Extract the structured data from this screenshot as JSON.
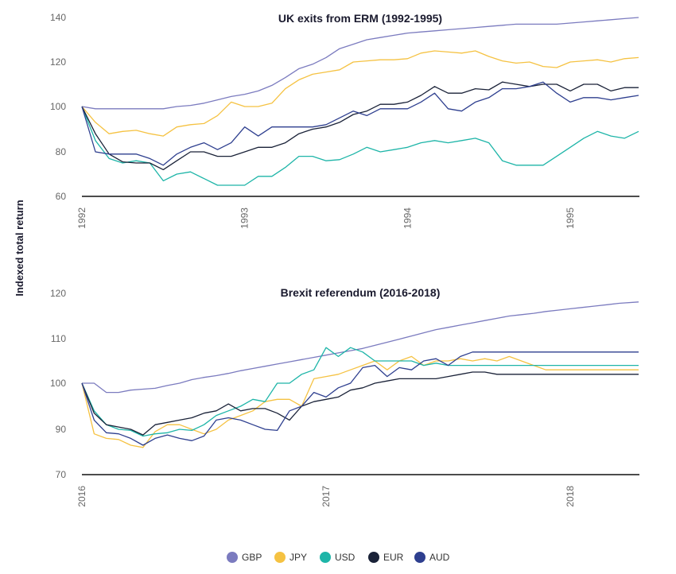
{
  "ylabel": "Indexed total return",
  "legend": [
    {
      "name": "GBP",
      "color": "#7b7bbf"
    },
    {
      "name": "JPY",
      "color": "#f5c242"
    },
    {
      "name": "USD",
      "color": "#1eb5a8"
    },
    {
      "name": "EUR",
      "color": "#1a2238"
    },
    {
      "name": "AUD",
      "color": "#2e3f8f"
    }
  ],
  "chart_data": [
    {
      "type": "line",
      "title": "UK exits from ERM (1992-1995)",
      "ylabel": "Indexed total return",
      "ylim": [
        60,
        140
      ],
      "yticks": [
        60,
        80,
        100,
        120,
        140
      ],
      "xlim": [
        1992,
        1995.42
      ],
      "xticks": [
        {
          "value": 1992,
          "label": "1992"
        },
        {
          "value": 1993,
          "label": "1993"
        },
        {
          "value": 1994,
          "label": "1994"
        },
        {
          "value": 1995,
          "label": "1995"
        }
      ],
      "x": [
        1992,
        1992.083,
        1992.167,
        1992.25,
        1992.333,
        1992.417,
        1992.5,
        1992.583,
        1992.667,
        1992.75,
        1992.833,
        1992.917,
        1993,
        1993.083,
        1993.167,
        1993.25,
        1993.333,
        1993.417,
        1993.5,
        1993.583,
        1993.667,
        1993.75,
        1993.833,
        1993.917,
        1994,
        1994.083,
        1994.167,
        1994.25,
        1994.333,
        1994.417,
        1994.5,
        1994.583,
        1994.667,
        1994.75,
        1994.833,
        1994.917,
        1995,
        1995.083,
        1995.167,
        1995.25,
        1995.333,
        1995.42
      ],
      "series": [
        {
          "name": "GBP",
          "color": "#7b7bbf",
          "values": [
            100,
            99,
            99,
            99,
            99,
            99,
            99,
            100,
            100.5,
            101.5,
            103,
            104.5,
            105.5,
            107,
            109.5,
            113,
            117,
            119,
            122,
            126,
            128,
            130,
            131,
            132,
            133,
            133.5,
            134,
            134.5,
            135,
            135.5,
            136,
            136.5,
            137,
            137,
            137,
            137,
            137.5,
            138,
            138.5,
            139,
            139.5,
            140
          ]
        },
        {
          "name": "JPY",
          "color": "#f5c242",
          "values": [
            100,
            93,
            88,
            89,
            89.5,
            88,
            87,
            91,
            92,
            92.5,
            96,
            102,
            100,
            100,
            101.5,
            108,
            112,
            114.5,
            115.5,
            116.5,
            120,
            120.5,
            121,
            121,
            121.5,
            124,
            125,
            124.5,
            124,
            125,
            122.5,
            120.5,
            119.5,
            120,
            118,
            117.5,
            120,
            120.5,
            121,
            120,
            121.5,
            122
          ]
        },
        {
          "name": "USD",
          "color": "#1eb5a8",
          "values": [
            100,
            85,
            77,
            75,
            76,
            75,
            67,
            70,
            71,
            68,
            65,
            65,
            65,
            69,
            69,
            73,
            78,
            78,
            76,
            76.5,
            79,
            82,
            80,
            81,
            82,
            84,
            85,
            84,
            85,
            86,
            84,
            76,
            74,
            74,
            74,
            78,
            82,
            86,
            89,
            87,
            86,
            89
          ]
        },
        {
          "name": "EUR",
          "color": "#1a2238",
          "values": [
            100,
            88,
            79,
            75.5,
            75,
            75,
            72,
            76,
            80,
            80,
            78,
            78,
            80,
            82,
            82,
            84,
            88,
            90,
            91,
            93,
            96.5,
            98,
            101,
            101,
            102,
            105,
            109,
            106,
            106,
            108,
            107.5,
            111,
            110,
            109,
            110,
            110,
            107,
            110,
            110,
            107,
            108.5,
            108.5
          ]
        },
        {
          "name": "AUD",
          "color": "#2e3f8f",
          "values": [
            100,
            80,
            79,
            79,
            79,
            77,
            74,
            79,
            82,
            84,
            81,
            84,
            91,
            87,
            91,
            91,
            91,
            91,
            92,
            95,
            98,
            96,
            99,
            99,
            99,
            102,
            106,
            99,
            98,
            102,
            104,
            108,
            108,
            109,
            111,
            106,
            102,
            104,
            104,
            103,
            104,
            105
          ]
        }
      ]
    },
    {
      "type": "line",
      "title": "Brexit referendum (2016-2018)",
      "ylabel": "Indexed total return",
      "ylim": [
        70,
        120
      ],
      "yticks": [
        70,
        90,
        100,
        110,
        120
      ],
      "xlim": [
        2016,
        2018.28
      ],
      "xticks": [
        {
          "value": 2016,
          "label": "2016"
        },
        {
          "value": 2017,
          "label": "2017"
        },
        {
          "value": 2018,
          "label": "2018"
        }
      ],
      "x": [
        2016,
        2016.05,
        2016.1,
        2016.15,
        2016.2,
        2016.25,
        2016.3,
        2016.35,
        2016.4,
        2016.45,
        2016.5,
        2016.55,
        2016.6,
        2016.65,
        2016.7,
        2016.75,
        2016.8,
        2016.85,
        2016.9,
        2016.95,
        2017,
        2017.05,
        2017.1,
        2017.15,
        2017.2,
        2017.25,
        2017.3,
        2017.35,
        2017.4,
        2017.45,
        2017.5,
        2017.55,
        2017.6,
        2017.65,
        2017.7,
        2017.75,
        2017.8,
        2017.85,
        2017.9,
        2017.95,
        2018,
        2018.05,
        2018.1,
        2018.15,
        2018.2,
        2018.28
      ],
      "series": [
        {
          "name": "GBP",
          "color": "#7b7bbf",
          "values": [
            100,
            100,
            98,
            98,
            98.5,
            98.7,
            98.9,
            99.5,
            100,
            100.8,
            101.3,
            101.7,
            102.2,
            102.8,
            103.3,
            103.8,
            104.3,
            104.8,
            105.3,
            105.8,
            106.3,
            106.8,
            107.3,
            107.8,
            108.5,
            109.2,
            109.9,
            110.6,
            111.3,
            112,
            112.5,
            113,
            113.5,
            114,
            114.5,
            115,
            115.3,
            115.6,
            116,
            116.3,
            116.6,
            116.9,
            117.2,
            117.5,
            117.8,
            118.1
          ]
        },
        {
          "name": "JPY",
          "color": "#f5c242",
          "values": [
            100,
            88,
            86,
            85.5,
            83,
            82,
            89,
            91,
            91,
            90,
            88,
            90,
            92,
            93,
            94,
            96,
            96.5,
            96.5,
            95,
            101,
            101.5,
            102,
            103,
            104,
            105,
            103,
            105,
            106,
            104,
            105,
            105,
            105.5,
            105,
            105.5,
            105,
            106,
            105,
            104,
            103,
            103,
            103,
            103,
            103,
            103,
            103,
            103
          ]
        },
        {
          "name": "USD",
          "color": "#1eb5a8",
          "values": [
            100,
            94,
            91,
            90,
            89.5,
            87,
            88,
            88.5,
            90,
            89.5,
            91,
            93,
            94,
            95,
            96.5,
            96,
            100,
            100,
            102,
            103,
            108,
            106,
            108,
            107,
            105,
            105,
            105,
            105,
            104,
            104.5,
            104,
            104,
            104,
            104,
            104,
            104,
            104,
            104,
            104,
            104,
            104,
            104,
            104,
            104,
            104,
            104
          ]
        },
        {
          "name": "EUR",
          "color": "#1a2238",
          "values": [
            100,
            93.5,
            91,
            90.5,
            90,
            87.5,
            91,
            91.5,
            92,
            92.5,
            93.5,
            94,
            95.5,
            94,
            94.5,
            94.5,
            93.5,
            92,
            95,
            96,
            96.5,
            97,
            98.5,
            99,
            100,
            100.5,
            101,
            101,
            101,
            101,
            101.5,
            102,
            102.5,
            102.5,
            102,
            102,
            102,
            102,
            102,
            102,
            102,
            102,
            102,
            102,
            102,
            102
          ]
        },
        {
          "name": "AUD",
          "color": "#2e3f8f",
          "values": [
            100,
            92,
            88.5,
            88,
            86,
            83,
            86,
            87.5,
            86,
            85,
            87,
            92,
            92.5,
            92,
            91,
            90,
            89.5,
            94,
            95,
            98,
            97,
            99,
            100,
            103.5,
            104,
            101.5,
            103.5,
            103,
            105,
            105.5,
            104,
            106,
            107,
            107,
            107,
            107,
            107,
            107,
            107,
            107,
            107,
            107,
            107,
            107,
            107,
            107
          ]
        }
      ]
    }
  ]
}
